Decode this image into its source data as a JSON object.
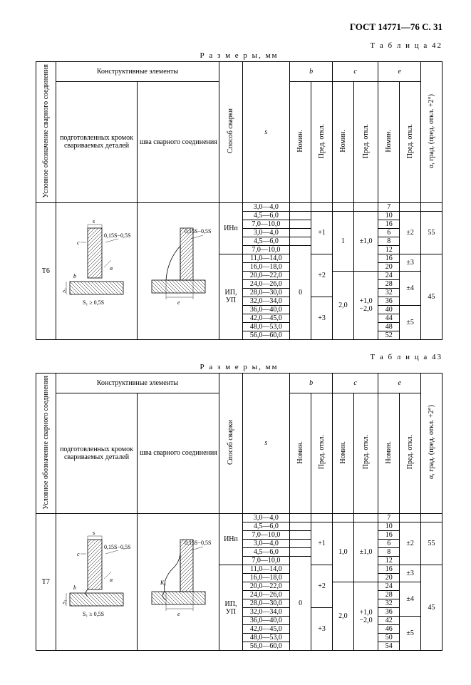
{
  "header": "ГОСТ 14771—76 С. 31",
  "tables": [
    {
      "label": "Т а б л и ц а  42",
      "razmery": "Р а з м е р ы, мм",
      "code": "Т6",
      "headers": {
        "uslov": "Условное обозначение сварного соединения",
        "konstr": "Конструктивные элементы",
        "podg": "подготовленных кромок свариваемых деталей",
        "shva": "шва сварного соединения",
        "sposob": "Способ сварки",
        "s": "s",
        "b": "b",
        "c": "c",
        "e": "e",
        "nomin": "Номин.",
        "pred": "Пред. откл.",
        "alpha": "α, град. (пред. откл. +2°)"
      },
      "rows": [
        {
          "s": "3,0—4,0",
          "sp": "ИНп",
          "b": "",
          "bp": "",
          "c": "",
          "cp": "",
          "e": "7",
          "ep": "",
          "a": ""
        },
        {
          "s": "4,5—6,0",
          "sp": "",
          "b": "",
          "bp": "+1",
          "c": "1",
          "cp": "±1,0",
          "e": "10",
          "ep": "±2",
          "a": "55"
        },
        {
          "s": "7,0—10,0",
          "sp": "",
          "b": "",
          "bp": "",
          "c": "",
          "cp": "",
          "e": "16",
          "ep": "",
          "a": ""
        },
        {
          "s": "3,0—4,0",
          "sp": "",
          "b": "",
          "bp": "",
          "c": "",
          "cp": "",
          "e": "6",
          "ep": "",
          "a": ""
        },
        {
          "s": "4,5—6,0",
          "sp": "",
          "b": "",
          "bp": "",
          "c": "",
          "cp": "",
          "e": "8",
          "ep": "",
          "a": ""
        },
        {
          "s": "7,0—10,0",
          "sp": "",
          "b": "0",
          "bp": "",
          "c": "",
          "cp": "",
          "e": "12",
          "ep": "",
          "a": ""
        },
        {
          "s": "11,0—14,0",
          "sp": "ИП, УП",
          "b": "",
          "bp": "+2",
          "c": "",
          "cp": "",
          "e": "16",
          "ep": "±3",
          "a": "45"
        },
        {
          "s": "16,0—18,0",
          "sp": "",
          "b": "",
          "bp": "",
          "c": "",
          "cp": "",
          "e": "20",
          "ep": "",
          "a": ""
        },
        {
          "s": "20,0—22,0",
          "sp": "",
          "b": "",
          "bp": "",
          "c": "2,0",
          "cp": "+1,0 −2,0",
          "e": "24",
          "ep": "±4",
          "a": ""
        },
        {
          "s": "24,0—26,0",
          "sp": "",
          "b": "",
          "bp": "",
          "c": "",
          "cp": "",
          "e": "28",
          "ep": "",
          "a": ""
        },
        {
          "s": "28,0—30,0",
          "sp": "",
          "b": "",
          "bp": "",
          "c": "",
          "cp": "",
          "e": "32",
          "ep": "",
          "a": ""
        },
        {
          "s": "32,0—34,0",
          "sp": "",
          "b": "",
          "bp": "+3",
          "c": "",
          "cp": "",
          "e": "36",
          "ep": "",
          "a": ""
        },
        {
          "s": "36,0—40,0",
          "sp": "",
          "b": "",
          "bp": "",
          "c": "",
          "cp": "",
          "e": "40",
          "ep": "±5",
          "a": ""
        },
        {
          "s": "42,0—45,0",
          "sp": "",
          "b": "",
          "bp": "",
          "c": "",
          "cp": "",
          "e": "44",
          "ep": "",
          "a": ""
        },
        {
          "s": "48,0—53,0",
          "sp": "",
          "b": "",
          "bp": "",
          "c": "",
          "cp": "",
          "e": "48",
          "ep": "",
          "a": ""
        },
        {
          "s": "56,0—60,0",
          "sp": "",
          "b": "",
          "bp": "",
          "c": "",
          "cp": "",
          "e": "52",
          "ep": "",
          "a": ""
        }
      ],
      "diagram1": {
        "dim_anno": "0,15S−0,5S",
        "s1_cond": "S₁ ≥ 0,5S"
      },
      "diagram2": {
        "dim_anno": "0,15S−0,5S"
      }
    },
    {
      "label": "Т а б л и ц а  43",
      "razmery": "Р а з м е р ы, мм",
      "code": "Т7",
      "headers": {
        "uslov": "Условное обозначение сварного соединения",
        "konstr": "Конструктивные элементы",
        "podg": "подготовленных кромок свариваемых деталей",
        "shva": "шва сварного соединения",
        "sposob": "Способ сварки",
        "s": "s",
        "b": "b",
        "c": "c",
        "e": "e",
        "nomin": "Номин.",
        "pred": "Пред. откл.",
        "alpha": "α, град. (пред. откл. +2°)"
      },
      "rows": [
        {
          "s": "3,0—4,0",
          "sp": "ИНп",
          "b": "",
          "bp": "",
          "c": "",
          "cp": "",
          "e": "7",
          "ep": "",
          "a": ""
        },
        {
          "s": "4,5—6,0",
          "sp": "",
          "b": "",
          "bp": "+1",
          "c": "1,0",
          "cp": "±1,0",
          "e": "10",
          "ep": "±2",
          "a": "55"
        },
        {
          "s": "7,0—10,0",
          "sp": "",
          "b": "",
          "bp": "",
          "c": "",
          "cp": "",
          "e": "16",
          "ep": "",
          "a": ""
        },
        {
          "s": "3,0—4,0",
          "sp": "",
          "b": "",
          "bp": "",
          "c": "",
          "cp": "",
          "e": "6",
          "ep": "",
          "a": ""
        },
        {
          "s": "4,5—6,0",
          "sp": "",
          "b": "",
          "bp": "",
          "c": "",
          "cp": "",
          "e": "8",
          "ep": "",
          "a": ""
        },
        {
          "s": "7,0—10,0",
          "sp": "",
          "b": "0",
          "bp": "",
          "c": "",
          "cp": "",
          "e": "12",
          "ep": "",
          "a": ""
        },
        {
          "s": "11,0—14,0",
          "sp": "ИП, УП",
          "b": "",
          "bp": "+2",
          "c": "",
          "cp": "",
          "e": "16",
          "ep": "±3",
          "a": "45"
        },
        {
          "s": "16,0—18,0",
          "sp": "",
          "b": "",
          "bp": "",
          "c": "",
          "cp": "",
          "e": "20",
          "ep": "",
          "a": ""
        },
        {
          "s": "20,0—22,0",
          "sp": "",
          "b": "",
          "bp": "",
          "c": "2,0",
          "cp": "+1,0 −2,0",
          "e": "24",
          "ep": "±4",
          "a": ""
        },
        {
          "s": "24,0—26,0",
          "sp": "",
          "b": "",
          "bp": "",
          "c": "",
          "cp": "",
          "e": "28",
          "ep": "",
          "a": ""
        },
        {
          "s": "28,0—30,0",
          "sp": "",
          "b": "",
          "bp": "",
          "c": "",
          "cp": "",
          "e": "32",
          "ep": "",
          "a": ""
        },
        {
          "s": "32,0—34,0",
          "sp": "",
          "b": "",
          "bp": "+3",
          "c": "",
          "cp": "",
          "e": "36",
          "ep": "",
          "a": ""
        },
        {
          "s": "36,0—40,0",
          "sp": "",
          "b": "",
          "bp": "",
          "c": "",
          "cp": "",
          "e": "42",
          "ep": "±5",
          "a": ""
        },
        {
          "s": "42,0—45,0",
          "sp": "",
          "b": "",
          "bp": "",
          "c": "",
          "cp": "",
          "e": "46",
          "ep": "",
          "a": ""
        },
        {
          "s": "48,0—53,0",
          "sp": "",
          "b": "",
          "bp": "",
          "c": "",
          "cp": "",
          "e": "50",
          "ep": "",
          "a": ""
        },
        {
          "s": "56,0—60,0",
          "sp": "",
          "b": "",
          "bp": "",
          "c": "",
          "cp": "",
          "e": "54",
          "ep": "",
          "a": ""
        }
      ],
      "diagram1": {
        "dim_anno": "0,15S−0,5S",
        "s1_cond": "S₁ ≥ 0,5S"
      },
      "diagram2": {
        "dim_anno": "0,15S−0,5S"
      }
    }
  ]
}
